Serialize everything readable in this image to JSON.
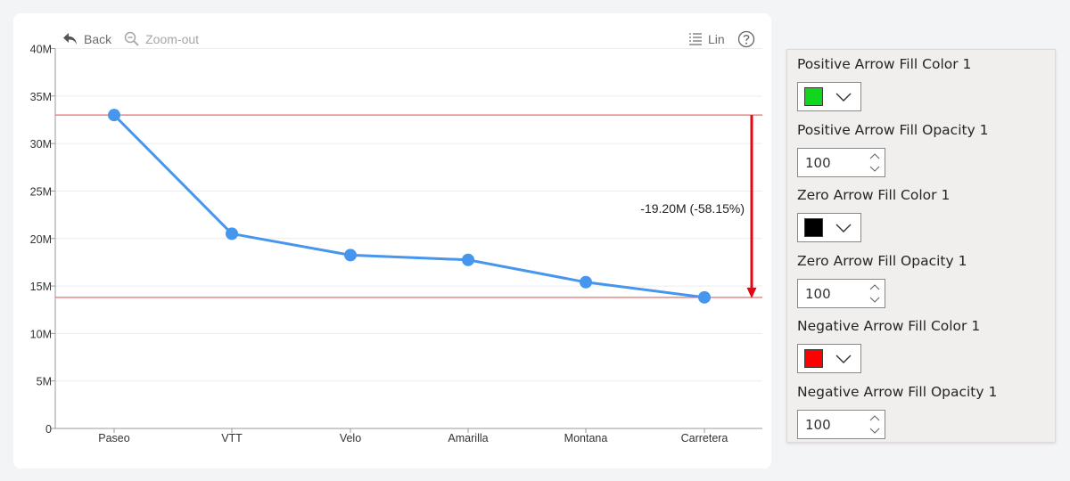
{
  "toolbar": {
    "back_label": "Back",
    "zoom_out_label": "Zoom-out",
    "scale_label": "Lin",
    "help_icon": "help-circle-icon"
  },
  "chart_data": {
    "type": "line",
    "categories": [
      "Paseo",
      "VTT",
      "Velo",
      "Amarilla",
      "Montana",
      "Carretera"
    ],
    "values": [
      33.0,
      20.5,
      18.25,
      17.75,
      15.4,
      13.8
    ],
    "y_ticks": [
      "0",
      "5M",
      "10M",
      "15M",
      "20M",
      "25M",
      "30M",
      "35M",
      "40M"
    ],
    "ylim": [
      0,
      40
    ],
    "grid": true,
    "line_color": "#4796ee",
    "reference_line_color": "#ec6b6b",
    "reference_lines": [
      33.0,
      13.8
    ],
    "arrow": {
      "from": 33.0,
      "to": 13.8,
      "color": "#e30613",
      "label": "-19.20M (-58.15%)"
    }
  },
  "panel": {
    "fields": [
      {
        "label": "Positive Arrow Fill Color 1",
        "type": "color",
        "value": "#10d71d"
      },
      {
        "label": "Positive Arrow Fill Opacity 1",
        "type": "number",
        "value": "100"
      },
      {
        "label": "Zero Arrow Fill Color 1",
        "type": "color",
        "value": "#000000"
      },
      {
        "label": "Zero Arrow Fill Opacity 1",
        "type": "number",
        "value": "100"
      },
      {
        "label": "Negative Arrow Fill Color 1",
        "type": "color",
        "value": "#ff0000"
      },
      {
        "label": "Negative Arrow Fill Opacity 1",
        "type": "number",
        "value": "100"
      }
    ]
  }
}
